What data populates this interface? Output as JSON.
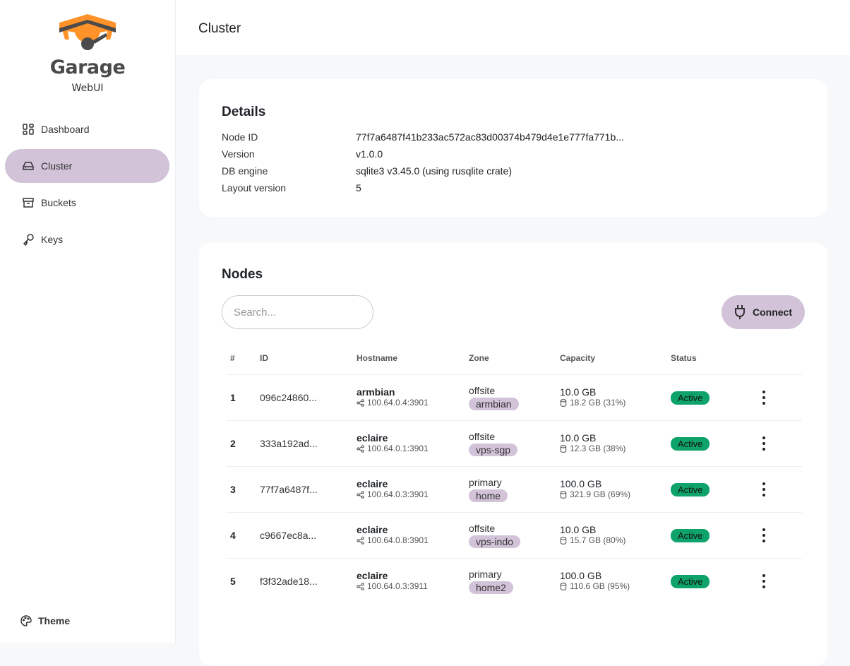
{
  "brand": {
    "name": "Garage",
    "subtitle": "WebUI",
    "colors": {
      "orange": "#ff9329",
      "dark": "#4a4a4a"
    }
  },
  "sidebar": {
    "items": [
      {
        "label": "Dashboard",
        "icon": "dashboard-icon"
      },
      {
        "label": "Cluster",
        "icon": "hard-drive-icon",
        "active": true
      },
      {
        "label": "Buckets",
        "icon": "archive-icon"
      },
      {
        "label": "Keys",
        "icon": "key-icon"
      }
    ],
    "theme_label": "Theme"
  },
  "header": {
    "title": "Cluster"
  },
  "details": {
    "title": "Details",
    "rows": [
      {
        "label": "Node ID",
        "value": "77f7a6487f41b233ac572ac83d00374b479d4e1e777fa771b..."
      },
      {
        "label": "Version",
        "value": "v1.0.0"
      },
      {
        "label": "DB engine",
        "value": "sqlite3 v3.45.0 (using rusqlite crate)"
      },
      {
        "label": "Layout version",
        "value": "5"
      }
    ]
  },
  "nodes": {
    "title": "Nodes",
    "search_placeholder": "Search...",
    "connect_label": "Connect",
    "columns": [
      "#",
      "ID",
      "Hostname",
      "Zone",
      "Capacity",
      "Status"
    ],
    "rows": [
      {
        "num": "1",
        "id": "096c24860...",
        "hostname": "armbian",
        "addr": "100.64.0.4:3901",
        "zone": "offsite",
        "tag": "armbian",
        "capacity": "10.0 GB",
        "disk": "18.2 GB (31%)",
        "status": "Active"
      },
      {
        "num": "2",
        "id": "333a192ad...",
        "hostname": "eclaire",
        "addr": "100.64.0.1:3901",
        "zone": "offsite",
        "tag": "vps-sgp",
        "capacity": "10.0 GB",
        "disk": "12.3 GB (38%)",
        "status": "Active"
      },
      {
        "num": "3",
        "id": "77f7a6487f...",
        "hostname": "eclaire",
        "addr": "100.64.0.3:3901",
        "zone": "primary",
        "tag": "home",
        "capacity": "100.0 GB",
        "disk": "321.9 GB (69%)",
        "status": "Active"
      },
      {
        "num": "4",
        "id": "c9667ec8a...",
        "hostname": "eclaire",
        "addr": "100.64.0.8:3901",
        "zone": "offsite",
        "tag": "vps-indo",
        "capacity": "10.0 GB",
        "disk": "15.7 GB (80%)",
        "status": "Active"
      },
      {
        "num": "5",
        "id": "f3f32ade18...",
        "hostname": "eclaire",
        "addr": "100.64.0.3:3911",
        "zone": "primary",
        "tag": "home2",
        "capacity": "100.0 GB",
        "disk": "110.6 GB (95%)",
        "status": "Active"
      }
    ]
  },
  "colors": {
    "accent": "#d2c3d8",
    "active": "#0ea36a"
  }
}
